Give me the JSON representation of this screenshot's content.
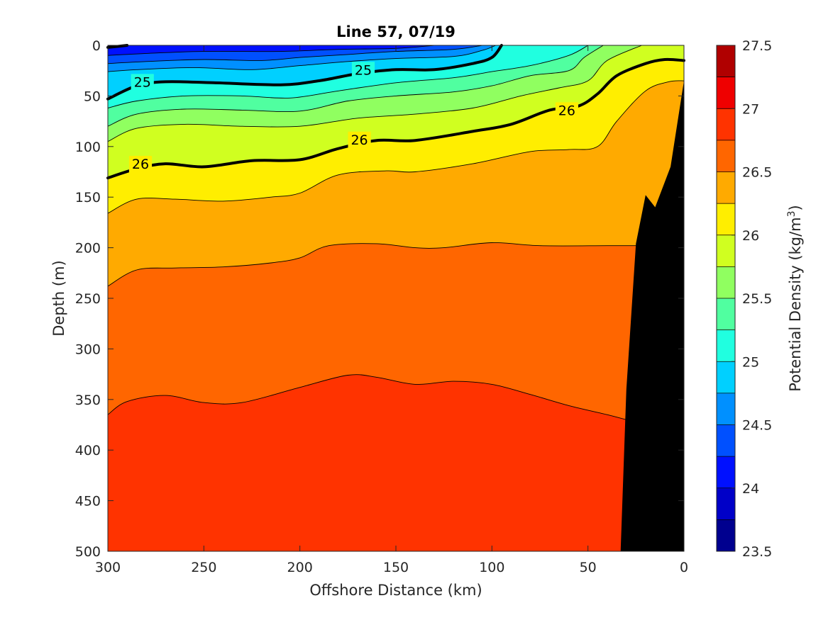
{
  "chart_data": {
    "type": "contourf",
    "title": "Line 57, 07/19",
    "xlabel": "Offshore Distance (km)",
    "ylabel": "Depth (m)",
    "xlim": [
      300,
      0
    ],
    "ylim": [
      0,
      500
    ],
    "x_reversed": true,
    "y_reversed": true,
    "xticks": [
      300,
      250,
      200,
      150,
      100,
      50,
      0
    ],
    "yticks": [
      0,
      50,
      100,
      150,
      200,
      250,
      300,
      350,
      400,
      450,
      500
    ],
    "colorbar": {
      "label": "Potential Density (kg/m",
      "label_superscript": "3",
      "label_suffix": ")",
      "range": [
        23.5,
        27.5
      ],
      "step": 0.25,
      "ticks": [
        23.5,
        24,
        24.5,
        25,
        25.5,
        26,
        26.5,
        27,
        27.5
      ],
      "colors": [
        "#00008f",
        "#0000c8",
        "#0010ff",
        "#0050ff",
        "#0090ff",
        "#00d0ff",
        "#20ffe0",
        "#50ffa0",
        "#90ff60",
        "#d0ff20",
        "#ffee00",
        "#ffaa00",
        "#ff6600",
        "#ff3300",
        "#ef0000",
        "#b00000"
      ]
    },
    "contour_levels": [
      24.0,
      24.25,
      24.5,
      24.75,
      25.0,
      25.25,
      25.5,
      25.75,
      26.0,
      26.25,
      26.5,
      26.75
    ],
    "contours": [
      {
        "level": 24.0,
        "points": [
          [
            300,
            2
          ],
          [
            290,
            0
          ]
        ]
      },
      {
        "level": 24.25,
        "points": [
          [
            300,
            10
          ],
          [
            280,
            8
          ],
          [
            250,
            6
          ],
          [
            210,
            6
          ],
          [
            180,
            4
          ],
          [
            150,
            3
          ],
          [
            130,
            0
          ]
        ]
      },
      {
        "level": 24.5,
        "points": [
          [
            300,
            18
          ],
          [
            280,
            16
          ],
          [
            250,
            14
          ],
          [
            220,
            15
          ],
          [
            200,
            12
          ],
          [
            175,
            9
          ],
          [
            150,
            6
          ],
          [
            120,
            4
          ],
          [
            105,
            0
          ]
        ]
      },
      {
        "level": 24.75,
        "points": [
          [
            300,
            26
          ],
          [
            285,
            24
          ],
          [
            255,
            22
          ],
          [
            225,
            24
          ],
          [
            200,
            20
          ],
          [
            175,
            16
          ],
          [
            150,
            13
          ],
          [
            120,
            11
          ],
          [
            105,
            5
          ],
          [
            98,
            0
          ]
        ]
      },
      {
        "level": 25.0,
        "points": [
          [
            300,
            53
          ],
          [
            285,
            40
          ],
          [
            270,
            36
          ],
          [
            245,
            37
          ],
          [
            210,
            39
          ],
          [
            190,
            35
          ],
          [
            170,
            28
          ],
          [
            150,
            24
          ],
          [
            130,
            24
          ],
          [
            110,
            18
          ],
          [
            100,
            12
          ],
          [
            95,
            0
          ]
        ]
      },
      {
        "level": 25.25,
        "points": [
          [
            300,
            62
          ],
          [
            285,
            55
          ],
          [
            260,
            50
          ],
          [
            230,
            50
          ],
          [
            205,
            52
          ],
          [
            180,
            45
          ],
          [
            150,
            37
          ],
          [
            120,
            32
          ],
          [
            100,
            26
          ],
          [
            80,
            20
          ],
          [
            60,
            10
          ],
          [
            50,
            0
          ]
        ]
      },
      {
        "level": 25.5,
        "points": [
          [
            300,
            80
          ],
          [
            285,
            68
          ],
          [
            260,
            63
          ],
          [
            230,
            64
          ],
          [
            200,
            65
          ],
          [
            175,
            55
          ],
          [
            150,
            50
          ],
          [
            120,
            46
          ],
          [
            100,
            40
          ],
          [
            80,
            30
          ],
          [
            60,
            25
          ],
          [
            52,
            12
          ],
          [
            42,
            0
          ]
        ]
      },
      {
        "level": 25.75,
        "points": [
          [
            300,
            95
          ],
          [
            285,
            82
          ],
          [
            260,
            78
          ],
          [
            230,
            80
          ],
          [
            200,
            80
          ],
          [
            170,
            72
          ],
          [
            140,
            68
          ],
          [
            110,
            62
          ],
          [
            85,
            50
          ],
          [
            65,
            42
          ],
          [
            50,
            35
          ],
          [
            40,
            15
          ],
          [
            22,
            0
          ]
        ]
      },
      {
        "level": 26.0,
        "points": [
          [
            300,
            131
          ],
          [
            285,
            122
          ],
          [
            270,
            117
          ],
          [
            250,
            120
          ],
          [
            225,
            114
          ],
          [
            200,
            113
          ],
          [
            180,
            102
          ],
          [
            160,
            94
          ],
          [
            140,
            94
          ],
          [
            110,
            85
          ],
          [
            90,
            78
          ],
          [
            70,
            64
          ],
          [
            55,
            60
          ],
          [
            45,
            48
          ],
          [
            35,
            30
          ],
          [
            20,
            18
          ],
          [
            10,
            14
          ],
          [
            0,
            15
          ]
        ]
      },
      {
        "level": 26.25,
        "points": [
          [
            300,
            166
          ],
          [
            285,
            152
          ],
          [
            265,
            152
          ],
          [
            240,
            154
          ],
          [
            215,
            150
          ],
          [
            200,
            146
          ],
          [
            180,
            128
          ],
          [
            155,
            124
          ],
          [
            140,
            125
          ],
          [
            110,
            117
          ],
          [
            80,
            105
          ],
          [
            60,
            103
          ],
          [
            45,
            100
          ],
          [
            35,
            75
          ],
          [
            20,
            45
          ],
          [
            8,
            36
          ],
          [
            0,
            35
          ]
        ]
      },
      {
        "level": 26.5,
        "points": [
          [
            300,
            238
          ],
          [
            285,
            222
          ],
          [
            265,
            220
          ],
          [
            240,
            219
          ],
          [
            215,
            215
          ],
          [
            200,
            210
          ],
          [
            185,
            198
          ],
          [
            160,
            196
          ],
          [
            140,
            200
          ],
          [
            125,
            200
          ],
          [
            100,
            195
          ],
          [
            75,
            198
          ],
          [
            40,
            198
          ],
          [
            25,
            198
          ]
        ]
      },
      {
        "level": 26.75,
        "points": [
          [
            300,
            365
          ],
          [
            290,
            352
          ],
          [
            270,
            346
          ],
          [
            250,
            353
          ],
          [
            230,
            353
          ],
          [
            200,
            338
          ],
          [
            175,
            326
          ],
          [
            160,
            328
          ],
          [
            140,
            335
          ],
          [
            120,
            332
          ],
          [
            100,
            335
          ],
          [
            80,
            345
          ],
          [
            60,
            356
          ],
          [
            40,
            365
          ],
          [
            30,
            370
          ]
        ]
      }
    ],
    "bathymetry": [
      [
        0,
        35
      ],
      [
        7,
        120
      ],
      [
        15,
        160
      ],
      [
        20,
        148
      ],
      [
        25,
        196
      ],
      [
        30,
        340
      ],
      [
        33,
        500
      ]
    ],
    "contour_labels": [
      {
        "text": "25",
        "x": 282,
        "y": 36
      },
      {
        "text": "25",
        "x": 167,
        "y": 24
      },
      {
        "text": "26",
        "x": 283,
        "y": 117
      },
      {
        "text": "26",
        "x": 169,
        "y": 93
      },
      {
        "text": "26",
        "x": 61,
        "y": 64
      }
    ]
  }
}
